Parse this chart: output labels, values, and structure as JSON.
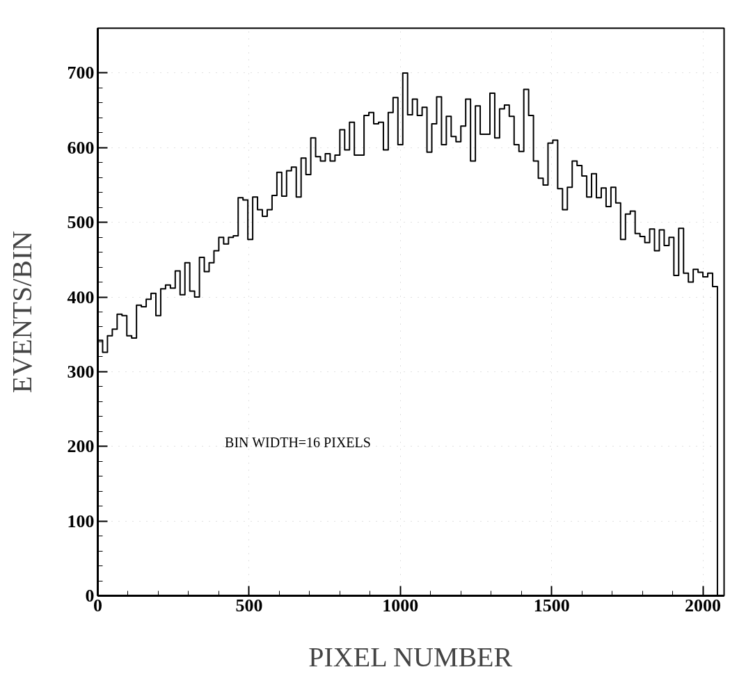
{
  "chart_data": {
    "type": "histogram",
    "xlabel": "PIXEL NUMBER",
    "ylabel": "EVENTS/BIN",
    "annotations": [
      "BIN WIDTH=16 PIXELS"
    ],
    "bins": [
      0,
      16,
      32,
      48,
      64,
      80,
      96,
      112,
      128,
      144,
      160,
      176,
      192,
      208,
      224,
      240,
      256,
      272,
      288,
      304,
      320,
      336,
      352,
      368,
      384,
      400,
      416,
      432,
      448,
      464,
      480,
      496,
      512,
      528,
      544,
      560,
      576,
      592,
      608,
      624,
      640,
      656,
      672,
      688,
      704,
      720,
      736,
      752,
      768,
      784,
      800,
      816,
      832,
      848,
      864,
      880,
      896,
      912,
      928,
      944,
      960,
      976,
      992,
      1008,
      1024,
      1040,
      1056,
      1072,
      1088,
      1104,
      1120,
      1136,
      1152,
      1168,
      1184,
      1200,
      1216,
      1232,
      1248,
      1264,
      1280,
      1296,
      1312,
      1328,
      1344,
      1360,
      1376,
      1392,
      1408,
      1424,
      1440,
      1456,
      1472,
      1488,
      1504,
      1520,
      1536,
      1552,
      1568,
      1584,
      1600,
      1616,
      1632,
      1648,
      1664,
      1680,
      1696,
      1712,
      1728,
      1744,
      1760,
      1776,
      1792,
      1808,
      1824,
      1840,
      1856,
      1872,
      1888,
      1904,
      1920,
      1936,
      1952,
      1968,
      1984,
      2000,
      2016,
      2032,
      2048
    ],
    "values": [
      342,
      326,
      348,
      357,
      377,
      375,
      348,
      345,
      389,
      387,
      397,
      405,
      375,
      411,
      416,
      412,
      435,
      403,
      446,
      408,
      400,
      453,
      434,
      446,
      462,
      480,
      471,
      480,
      482,
      533,
      530,
      477,
      534,
      517,
      508,
      517,
      536,
      567,
      535,
      569,
      574,
      534,
      586,
      564,
      613,
      588,
      582,
      592,
      582,
      590,
      624,
      597,
      634,
      590,
      590,
      643,
      647,
      632,
      634,
      597,
      647,
      667,
      604,
      700,
      644,
      665,
      643,
      654,
      594,
      632,
      668,
      604,
      642,
      615,
      608,
      629,
      665,
      582,
      656,
      618,
      618,
      673,
      613,
      652,
      657,
      642,
      604,
      595,
      678,
      643,
      582,
      559,
      550,
      606,
      610,
      545,
      517,
      547,
      582,
      576,
      562,
      534,
      565,
      533,
      546,
      521,
      547,
      526,
      477,
      511,
      515,
      485,
      481,
      473,
      491,
      462,
      490,
      469,
      480,
      429,
      492,
      432,
      420,
      437,
      433,
      427,
      432,
      414
    ],
    "color": "#000000",
    "xlim": [
      0,
      2070
    ],
    "ylim": [
      0,
      760
    ],
    "xticks": [
      0,
      {
        "value": 100,
        "label": null
      },
      {
        "value": 200,
        "label": null
      },
      {
        "value": 300,
        "label": null
      },
      {
        "value": 400,
        "label": null
      },
      500,
      {
        "value": 600,
        "label": null
      },
      {
        "value": 700,
        "label": null
      },
      {
        "value": 800,
        "label": null
      },
      {
        "value": 900,
        "label": null
      },
      1000,
      {
        "value": 1100,
        "label": null
      },
      {
        "value": 1200,
        "label": null
      },
      {
        "value": 1300,
        "label": null
      },
      {
        "value": 1400,
        "label": null
      },
      1500,
      {
        "value": 1600,
        "label": null
      },
      {
        "value": 1700,
        "label": null
      },
      {
        "value": 1800,
        "label": null
      },
      {
        "value": 1900,
        "label": null
      },
      2000
    ],
    "yticks": [
      0,
      {
        "value": 20,
        "label": null
      },
      {
        "value": 40,
        "label": null
      },
      {
        "value": 60,
        "label": null
      },
      {
        "value": 80,
        "label": null
      },
      100,
      {
        "value": 120,
        "label": null
      },
      {
        "value": 140,
        "label": null
      },
      {
        "value": 160,
        "label": null
      },
      {
        "value": 180,
        "label": null
      },
      200,
      {
        "value": 220,
        "label": null
      },
      {
        "value": 240,
        "label": null
      },
      {
        "value": 260,
        "label": null
      },
      {
        "value": 280,
        "label": null
      },
      300,
      {
        "value": 320,
        "label": null
      },
      {
        "value": 340,
        "label": null
      },
      {
        "value": 360,
        "label": null
      },
      {
        "value": 380,
        "label": null
      },
      400,
      {
        "value": 420,
        "label": null
      },
      {
        "value": 440,
        "label": null
      },
      {
        "value": 460,
        "label": null
      },
      {
        "value": 480,
        "label": null
      },
      500,
      {
        "value": 520,
        "label": null
      },
      {
        "value": 540,
        "label": null
      },
      {
        "value": 560,
        "label": null
      },
      {
        "value": 580,
        "label": null
      },
      600,
      {
        "value": 620,
        "label": null
      },
      {
        "value": 640,
        "label": null
      },
      {
        "value": 660,
        "label": null
      },
      {
        "value": 680,
        "label": null
      },
      700
    ],
    "grid": true
  }
}
